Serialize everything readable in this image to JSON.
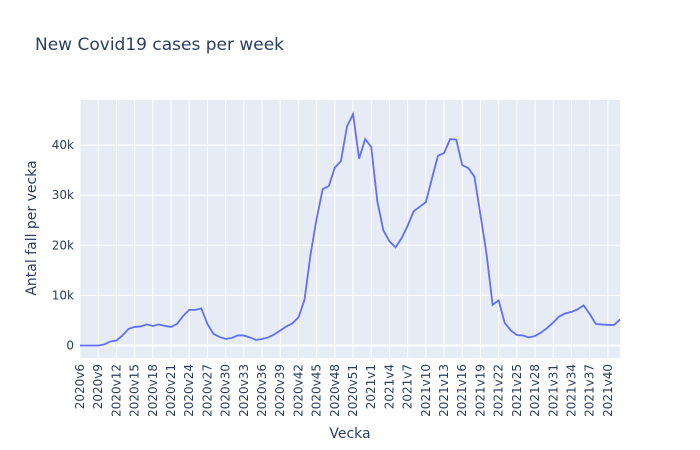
{
  "chart_data": {
    "type": "line",
    "title": "New Covid19 cases per week",
    "xlabel": "Vecka",
    "ylabel": "Antal fall per vecka",
    "ylim": [
      -2500,
      49000
    ],
    "yticks": [
      0,
      10000,
      20000,
      30000,
      40000
    ],
    "ytick_labels": [
      "0",
      "10k",
      "20k",
      "30k",
      "40k"
    ],
    "xticks": [
      "2020v6",
      "2020v9",
      "2020v12",
      "2020v15",
      "2020v18",
      "2020v21",
      "2020v24",
      "2020v27",
      "2020v30",
      "2020v33",
      "2020v36",
      "2020v39",
      "2020v42",
      "2020v45",
      "2020v48",
      "2020v51",
      "2021v1",
      "2021v4",
      "2021v7",
      "2021v10",
      "2021v13",
      "2021v16",
      "2021v19",
      "2021v22",
      "2021v25",
      "2021v28",
      "2021v31",
      "2021v34",
      "2021v37",
      "2021v40"
    ],
    "grid": true,
    "line_color": "#636efa",
    "background": "#e5ecf6",
    "series": [
      {
        "x": [
          "2020v6",
          "2020v7",
          "2020v8",
          "2020v9",
          "2020v10",
          "2020v11",
          "2020v12",
          "2020v13",
          "2020v14",
          "2020v15",
          "2020v16",
          "2020v17",
          "2020v18",
          "2020v19",
          "2020v20",
          "2020v21",
          "2020v22",
          "2020v23",
          "2020v24",
          "2020v25",
          "2020v26",
          "2020v27",
          "2020v28",
          "2020v29",
          "2020v30",
          "2020v31",
          "2020v32",
          "2020v33",
          "2020v34",
          "2020v35",
          "2020v36",
          "2020v37",
          "2020v38",
          "2020v39",
          "2020v40",
          "2020v41",
          "2020v42",
          "2020v43",
          "2020v44",
          "2020v45",
          "2020v46",
          "2020v47",
          "2020v48",
          "2020v49",
          "2020v50",
          "2020v51",
          "2020v52",
          "2020v53",
          "2021v1",
          "2021v2",
          "2021v3",
          "2021v4",
          "2021v5",
          "2021v6",
          "2021v7",
          "2021v8",
          "2021v9",
          "2021v10",
          "2021v11",
          "2021v12",
          "2021v13",
          "2021v14",
          "2021v15",
          "2021v16",
          "2021v17",
          "2021v18",
          "2021v19",
          "2021v20",
          "2021v21",
          "2021v22",
          "2021v23",
          "2021v24",
          "2021v25",
          "2021v26",
          "2021v27",
          "2021v28",
          "2021v29",
          "2021v30",
          "2021v31",
          "2021v32",
          "2021v33",
          "2021v34",
          "2021v35",
          "2021v36",
          "2021v37",
          "2021v38",
          "2021v39",
          "2021v40",
          "2021v41",
          "2021v42"
        ],
        "values": [
          0,
          0,
          0,
          0,
          200,
          800,
          1000,
          2000,
          3300,
          3700,
          3800,
          4200,
          3900,
          4200,
          3900,
          3700,
          4300,
          5900,
          7100,
          7100,
          7400,
          4300,
          2300,
          1700,
          1300,
          1500,
          2000,
          2000,
          1600,
          1100,
          1300,
          1600,
          2200,
          3000,
          3800,
          4400,
          5600,
          9100,
          18200,
          25300,
          31200,
          31800,
          35500,
          36800,
          43700,
          46200,
          37300,
          41200,
          39600,
          28800,
          23000,
          20800,
          19600,
          21400,
          23900,
          26800,
          27700,
          28600,
          33300,
          37900,
          38400,
          41200,
          41100,
          36000,
          35400,
          33700,
          26100,
          18300,
          8100,
          9000,
          4500,
          3000,
          2100,
          2000,
          1600,
          1900,
          2600,
          3500,
          4600,
          5800,
          6400,
          6700,
          7200,
          8000,
          6300,
          4300,
          4200,
          4100,
          4100,
          5200
        ]
      }
    ]
  }
}
